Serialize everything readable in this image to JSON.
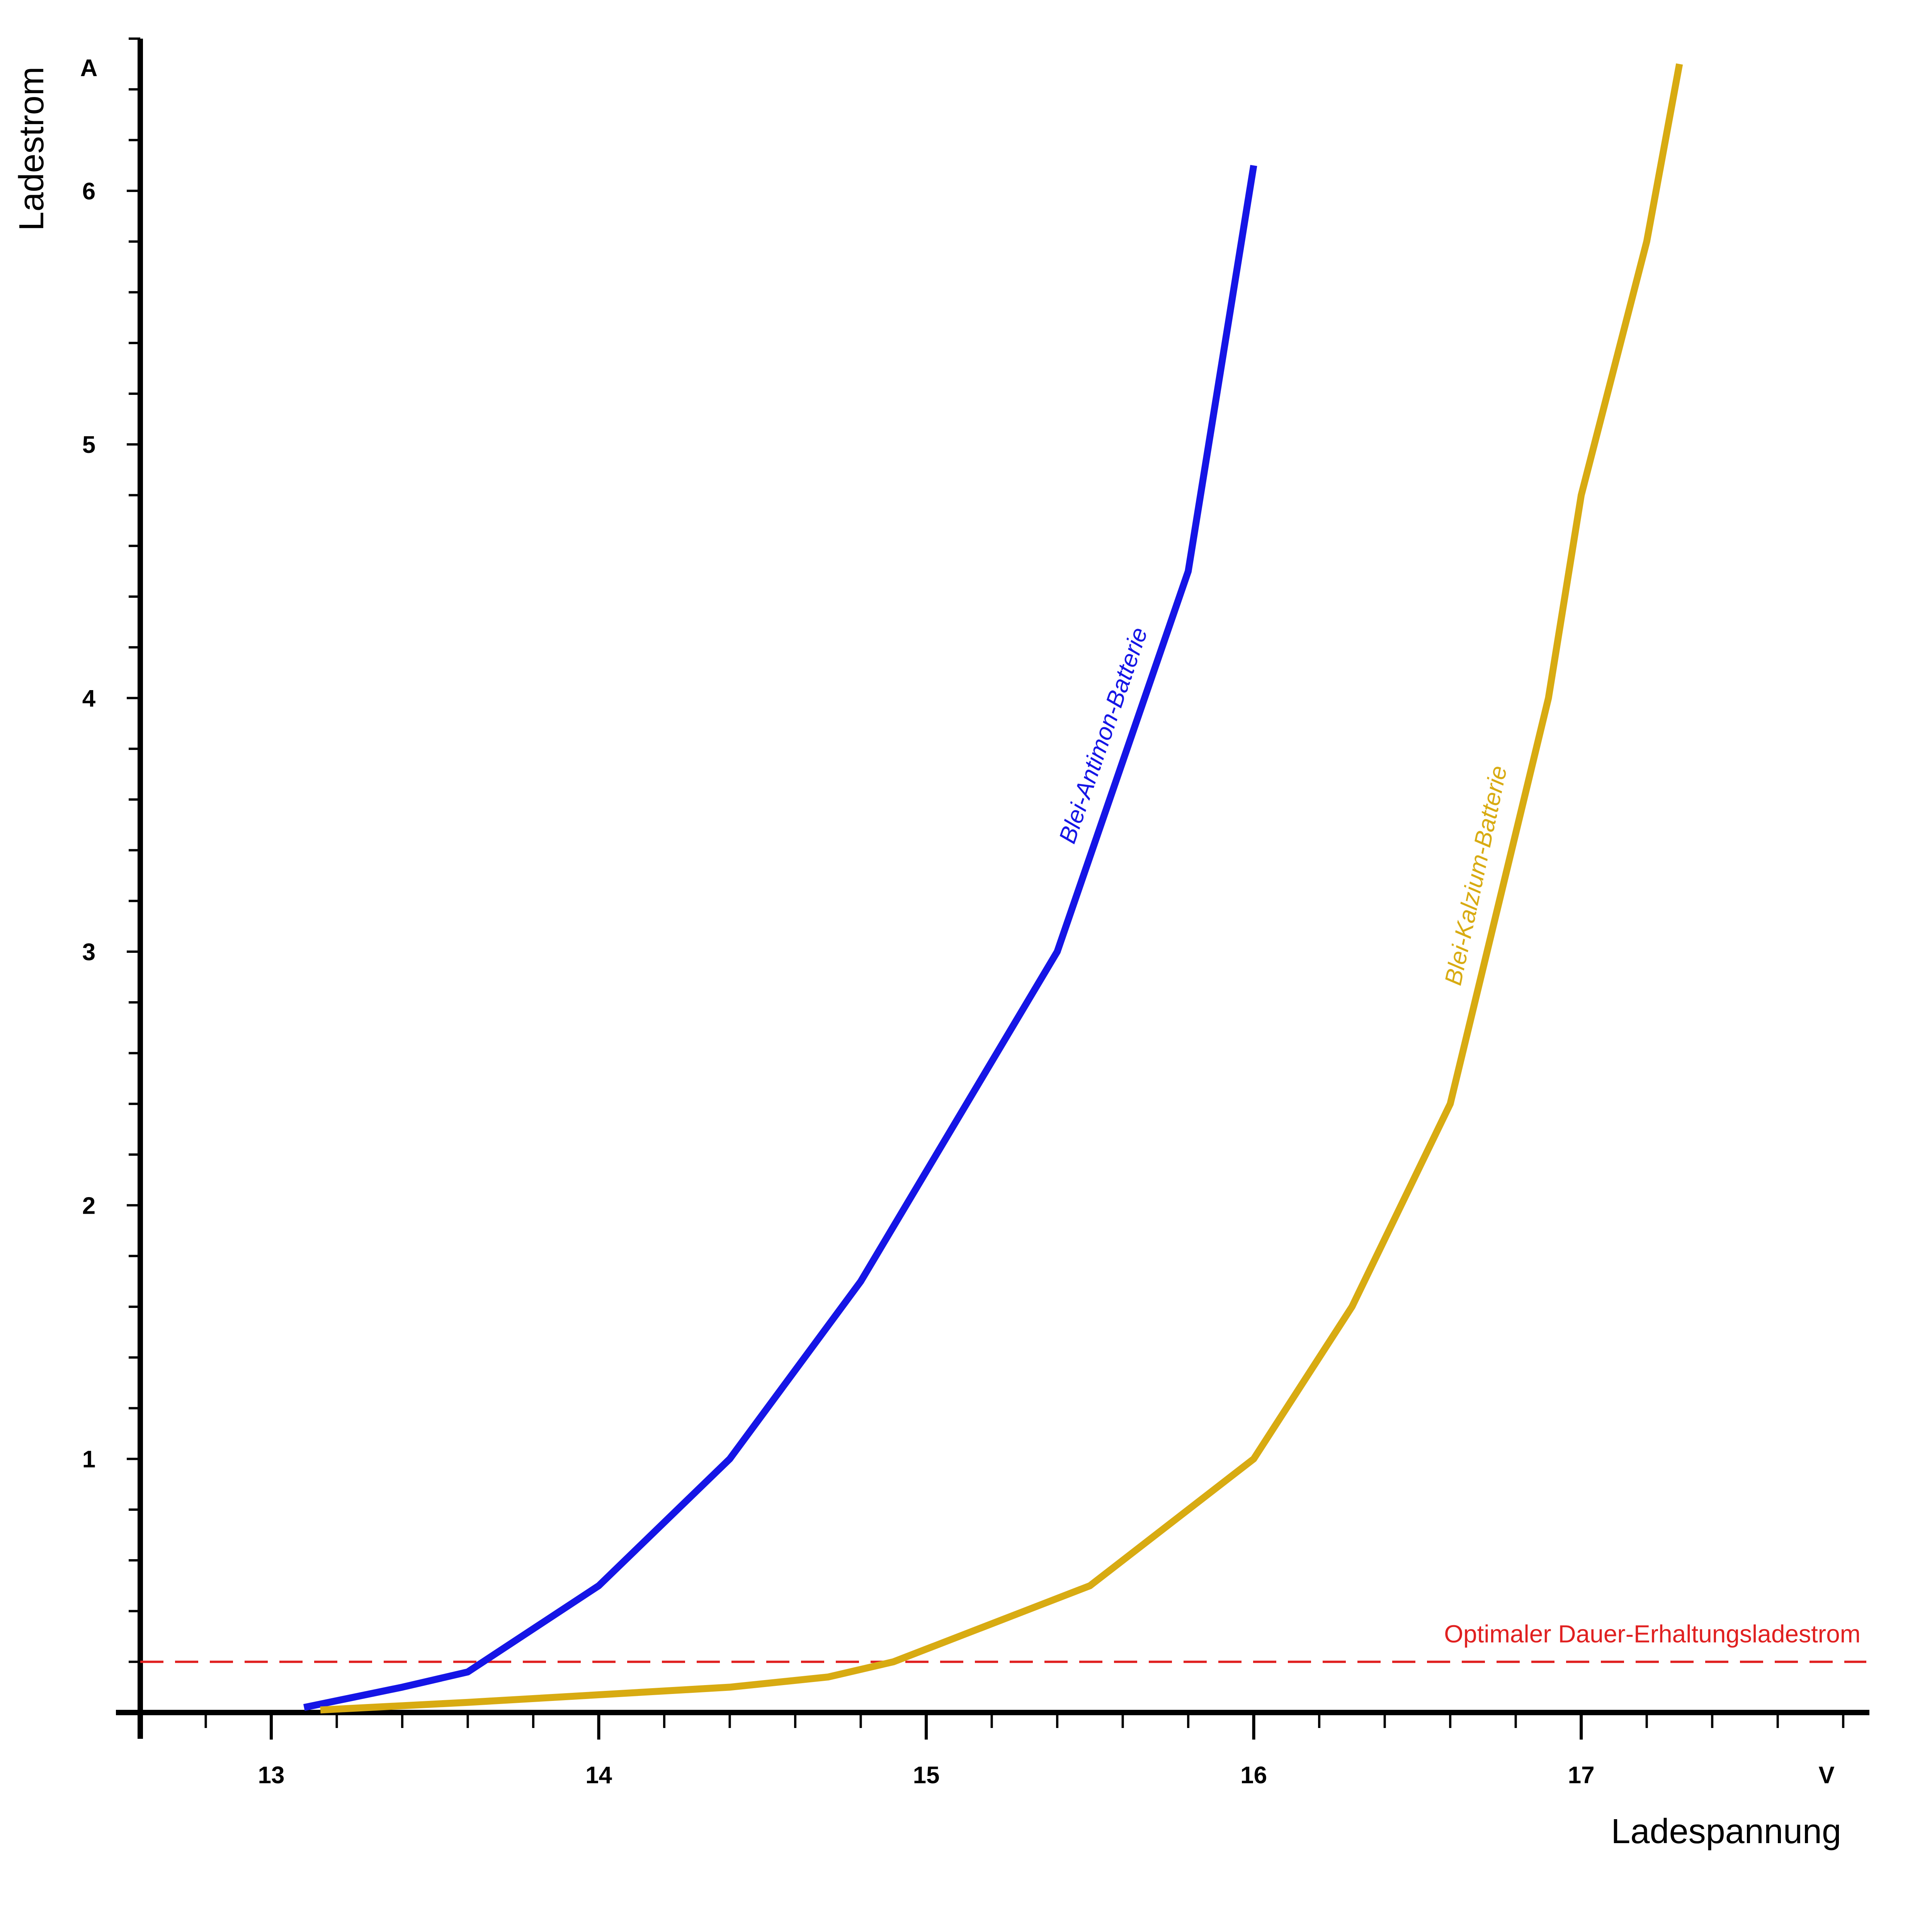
{
  "chart_data": {
    "type": "line",
    "xlabel": "Ladespannung",
    "ylabel": "Ladestrom",
    "x_unit": "V",
    "y_unit": "A",
    "xlim": [
      12.6,
      17.88
    ],
    "ylim": [
      0,
      6.6
    ],
    "x_ticks": [
      13,
      14,
      15,
      16,
      17
    ],
    "x_minor_step": 0.2,
    "y_ticks": [
      1,
      2,
      3,
      4,
      5,
      6
    ],
    "y_minor_step": 0.2,
    "grid": false,
    "series": [
      {
        "name": "Blei-Antimon-Batterie",
        "color": "#1515e6",
        "x": [
          13.1,
          13.4,
          13.6,
          14.0,
          14.4,
          14.8,
          15.4,
          15.8,
          16.0
        ],
        "y": [
          0.02,
          0.1,
          0.16,
          0.5,
          1.0,
          1.7,
          3.0,
          4.5,
          6.1
        ]
      },
      {
        "name": "Blei-Kalzium-Batterie",
        "color": "#d8ab12",
        "x": [
          13.15,
          13.6,
          14.4,
          14.7,
          14.9,
          15.5,
          16.0,
          16.3,
          16.6,
          16.9,
          17.0,
          17.2,
          17.3
        ],
        "y": [
          0.01,
          0.04,
          0.1,
          0.14,
          0.2,
          0.5,
          1.0,
          1.6,
          2.4,
          4.0,
          4.8,
          5.8,
          6.5
        ]
      }
    ],
    "reference_line": {
      "label": "Optimaler Dauer-Erhaltungsladestrom",
      "y": 0.2,
      "color": "#e02020",
      "style": "dashed"
    }
  }
}
